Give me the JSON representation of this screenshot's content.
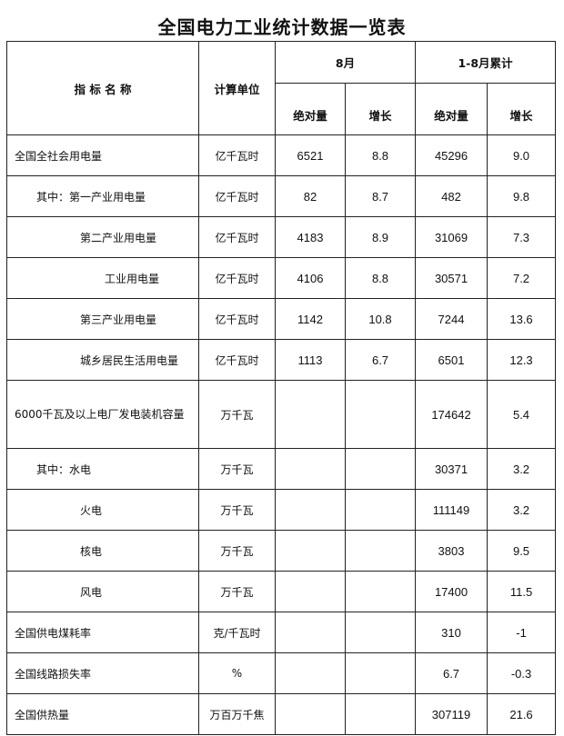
{
  "title": "全国电力工业统计数据一览表",
  "header": {
    "name": "指 标 名 称",
    "unit": "计算单位",
    "month": "8月",
    "cumulative": "1-8月累计",
    "abs": "绝对量",
    "growth": "增长"
  },
  "rows": [
    {
      "name": "全国全社会用电量",
      "indent": 0,
      "unit": "亿千瓦时",
      "m_abs": "6521",
      "m_growth": "8.8",
      "c_abs": "45296",
      "c_growth": "9.0"
    },
    {
      "name": "其中：第一产业用电量",
      "indent": 1,
      "unit": "亿千瓦时",
      "m_abs": "82",
      "m_growth": "8.7",
      "c_abs": "482",
      "c_growth": "9.8"
    },
    {
      "name": "第二产业用电量",
      "indent": 2,
      "unit": "亿千瓦时",
      "m_abs": "4183",
      "m_growth": "8.9",
      "c_abs": "31069",
      "c_growth": "7.3"
    },
    {
      "name": "工业用电量",
      "indent": 3,
      "unit": "亿千瓦时",
      "m_abs": "4106",
      "m_growth": "8.8",
      "c_abs": "30571",
      "c_growth": "7.2"
    },
    {
      "name": "第三产业用电量",
      "indent": 2,
      "unit": "亿千瓦时",
      "m_abs": "1142",
      "m_growth": "10.8",
      "c_abs": "7244",
      "c_growth": "13.6"
    },
    {
      "name": "城乡居民生活用电量",
      "indent": 2,
      "unit": "亿千瓦时",
      "m_abs": "1113",
      "m_growth": "6.7",
      "c_abs": "6501",
      "c_growth": "12.3"
    },
    {
      "name": "6000千瓦及以上电厂发电装机容量",
      "indent": 0,
      "unit": "万千瓦",
      "m_abs": "",
      "m_growth": "",
      "c_abs": "174642",
      "c_growth": "5.4",
      "tall": true
    },
    {
      "name": "其中：水电",
      "indent": 1,
      "unit": "万千瓦",
      "m_abs": "",
      "m_growth": "",
      "c_abs": "30371",
      "c_growth": "3.2"
    },
    {
      "name": "火电",
      "indent": 2,
      "unit": "万千瓦",
      "m_abs": "",
      "m_growth": "",
      "c_abs": "111149",
      "c_growth": "3.2"
    },
    {
      "name": "核电",
      "indent": 2,
      "unit": "万千瓦",
      "m_abs": "",
      "m_growth": "",
      "c_abs": "3803",
      "c_growth": "9.5"
    },
    {
      "name": "风电",
      "indent": 2,
      "unit": "万千瓦",
      "m_abs": "",
      "m_growth": "",
      "c_abs": "17400",
      "c_growth": "11.5"
    },
    {
      "name": "全国供电煤耗率",
      "indent": 0,
      "unit": "克/千瓦时",
      "m_abs": "",
      "m_growth": "",
      "c_abs": "310",
      "c_growth": "-1"
    },
    {
      "name": "全国线路损失率",
      "indent": 0,
      "unit": "%",
      "m_abs": "",
      "m_growth": "",
      "c_abs": "6.7",
      "c_growth": "-0.3"
    },
    {
      "name": "全国供热量",
      "indent": 0,
      "unit": "万百万千焦",
      "m_abs": "",
      "m_growth": "",
      "c_abs": "307119",
      "c_growth": "21.6"
    }
  ]
}
